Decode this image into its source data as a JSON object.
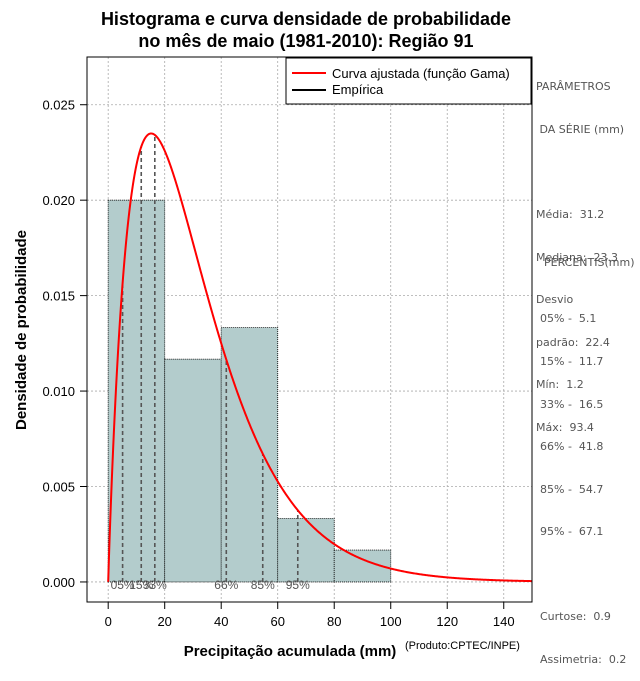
{
  "chart_data": {
    "type": "bar",
    "title_lines": [
      "Histograma e curva densidade de probabilidade",
      "no mês de maio (1981-2010): Região 91"
    ],
    "xlabel": "Precipitação acumulada (mm)",
    "ylabel": "Densidade de probabilidade",
    "xlim": [
      -7.5,
      150
    ],
    "ylim": [
      -0.00105,
      0.0275
    ],
    "x_ticks": [
      0,
      20,
      40,
      60,
      80,
      100,
      120,
      140
    ],
    "y_ticks": [
      0.0,
      0.005,
      0.01,
      0.015,
      0.02,
      0.025
    ],
    "y_tick_labels": [
      "0.000",
      "0.005",
      "0.010",
      "0.015",
      "0.020",
      "0.025"
    ],
    "grid": true,
    "histogram": {
      "name": "Empírica",
      "bins": [
        [
          0,
          20
        ],
        [
          20,
          40
        ],
        [
          40,
          60
        ],
        [
          60,
          80
        ],
        [
          80,
          100
        ]
      ],
      "values": [
        0.02,
        0.01167,
        0.01333,
        0.00333,
        0.00167
      ],
      "color": "#b3cccc"
    },
    "curve": {
      "name": "Curva ajustada (função Gama)",
      "distribution": "gamma",
      "shape": 1.95,
      "scale": 16.0,
      "color": "#ff0000"
    },
    "percentile_lines": [
      {
        "value": 5.1,
        "label": "05%"
      },
      {
        "value": 11.7,
        "label": "15%"
      },
      {
        "value": 16.5,
        "label": "33%"
      },
      {
        "value": 41.8,
        "label": "66%"
      },
      {
        "value": 54.7,
        "label": "85%"
      },
      {
        "value": 67.1,
        "label": "95%"
      }
    ],
    "legend": {
      "placement": "top-right",
      "entries": [
        "Curva ajustada (função Gama)",
        "Empírica"
      ]
    }
  },
  "footer_note": "(Produto:CPTEC/INPE)",
  "side_panel": {
    "params_title_1": "PARÂMETROS",
    "params_title_2": " DA SÉRIE (mm)",
    "stats": [
      "Média:  31.2",
      "Mediana:  23.3",
      "Desvio",
      "padrão:  22.4",
      "Mín:  1.2",
      "Máx:  93.4"
    ],
    "percentis_title": "PERCENTIS(mm)",
    "percentis": [
      "05% -  5.1",
      "15% -  11.7",
      "33% -  16.5",
      "66% -  41.8",
      "85% -  54.7",
      "95% -  67.1"
    ],
    "extra": [
      "Curtose:  0.9",
      "Assimetria:  0.2"
    ]
  },
  "colors": {
    "bar": "#b3cccc",
    "curve": "#ff0000",
    "grid": "#aaaaaa",
    "percentile_line": "#555555"
  }
}
